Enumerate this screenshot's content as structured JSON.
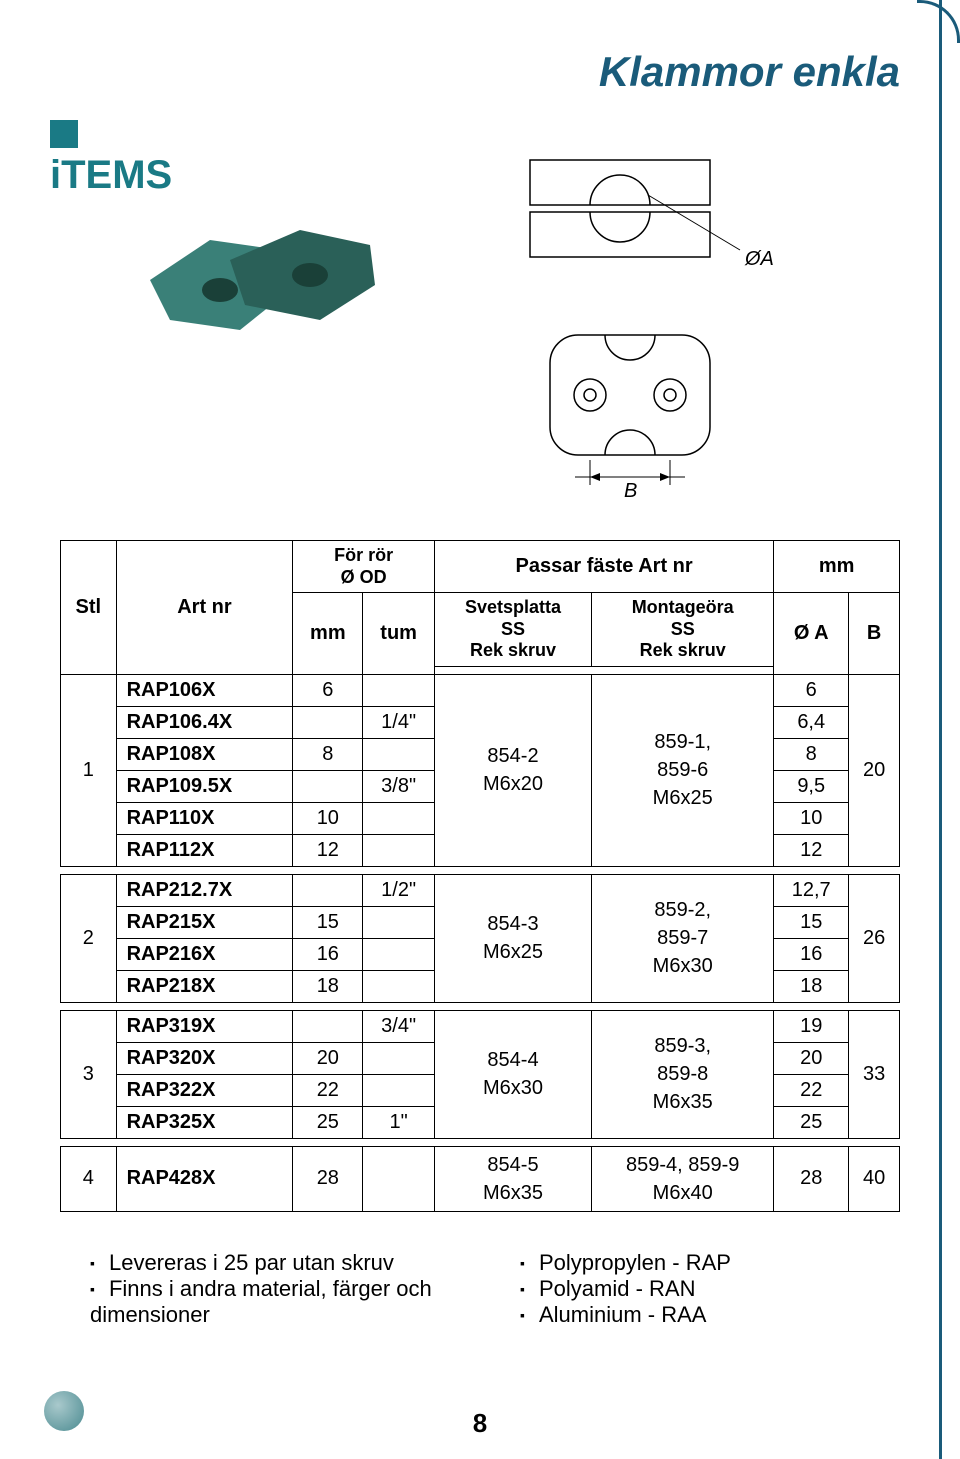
{
  "title": "Klammor enkla",
  "logo_text": "iTEMS",
  "diagram_labels": {
    "oa": "ØA",
    "b": "B"
  },
  "table": {
    "headers": {
      "stl": "Stl",
      "artnr": "Art nr",
      "forror": "För rör",
      "ood": "Ø OD",
      "mm": "mm",
      "tum": "tum",
      "passar": "Passar fäste Art nr",
      "svets": "Svetsplatta",
      "ss": "SS",
      "rek": "Rek skruv",
      "monta": "Montageöra",
      "mm2": "mm",
      "oa": "Ø A",
      "b": "B"
    },
    "groups": [
      {
        "stl": "1",
        "svets": "854-2\nM6x20",
        "monta": "859-1,\n859-6\nM6x25",
        "b": "20",
        "rows": [
          {
            "art": "RAP106X",
            "mm": "6",
            "tum": "",
            "oa": "6"
          },
          {
            "art": "RAP106.4X",
            "mm": "",
            "tum": "1/4\"",
            "oa": "6,4"
          },
          {
            "art": "RAP108X",
            "mm": "8",
            "tum": "",
            "oa": "8"
          },
          {
            "art": "RAP109.5X",
            "mm": "",
            "tum": "3/8\"",
            "oa": "9,5"
          },
          {
            "art": "RAP110X",
            "mm": "10",
            "tum": "",
            "oa": "10"
          },
          {
            "art": "RAP112X",
            "mm": "12",
            "tum": "",
            "oa": "12"
          }
        ]
      },
      {
        "stl": "2",
        "svets": "854-3\nM6x25",
        "monta": "859-2,\n859-7\nM6x30",
        "b": "26",
        "rows": [
          {
            "art": "RAP212.7X",
            "mm": "",
            "tum": "1/2\"",
            "oa": "12,7"
          },
          {
            "art": "RAP215X",
            "mm": "15",
            "tum": "",
            "oa": "15"
          },
          {
            "art": "RAP216X",
            "mm": "16",
            "tum": "",
            "oa": "16"
          },
          {
            "art": "RAP218X",
            "mm": "18",
            "tum": "",
            "oa": "18"
          }
        ]
      },
      {
        "stl": "3",
        "svets": "854-4\nM6x30",
        "monta": "859-3,\n859-8\nM6x35",
        "b": "33",
        "rows": [
          {
            "art": "RAP319X",
            "mm": "",
            "tum": "3/4\"",
            "oa": "19"
          },
          {
            "art": "RAP320X",
            "mm": "20",
            "tum": "",
            "oa": "20"
          },
          {
            "art": "RAP322X",
            "mm": "22",
            "tum": "",
            "oa": "22"
          },
          {
            "art": "RAP325X",
            "mm": "25",
            "tum": "1\"",
            "oa": "25"
          }
        ]
      },
      {
        "stl": "4",
        "svets": "854-5\nM6x35",
        "monta": "859-4, 859-9\nM6x40",
        "b": "40",
        "rows": [
          {
            "art": "RAP428X",
            "mm": "28",
            "tum": "",
            "oa": "28"
          }
        ]
      }
    ]
  },
  "bullets": {
    "left": [
      "Levereras i 25 par utan skruv",
      "Finns i andra material, färger och dimensioner"
    ],
    "right": [
      "Polypropylen - RAP",
      "Polyamid - RAN",
      "Aluminium - RAA"
    ]
  },
  "pagenum": "8"
}
